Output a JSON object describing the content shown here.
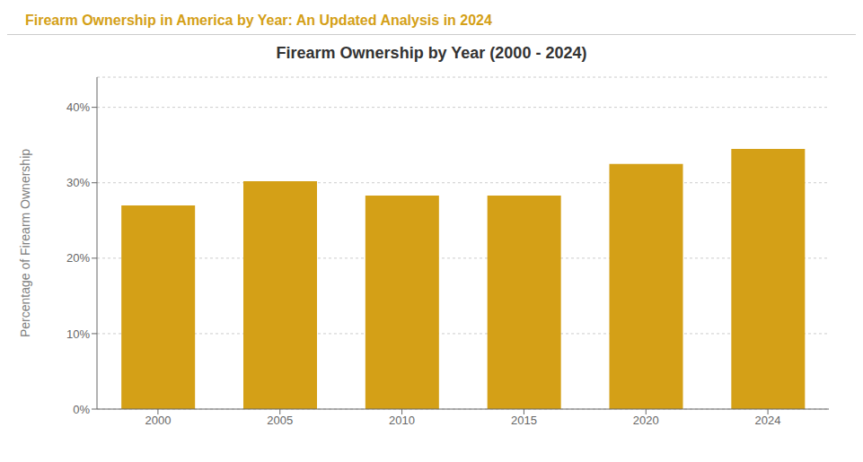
{
  "chart_data": {
    "type": "bar",
    "title": "Firearm Ownership by Year (2000 - 2024)",
    "subtitle": "Firearm Ownership in America by Year: An Updated Analysis in 2024",
    "ylabel": "Percentage of Firearm Ownership",
    "categories": [
      "2000",
      "2005",
      "2010",
      "2015",
      "2020",
      "2024"
    ],
    "values": [
      27,
      30.2,
      28.3,
      28.3,
      32.5,
      34.5
    ],
    "color": "#D4A017",
    "ylim": [
      0,
      44
    ],
    "yticks": [
      {
        "value": 0,
        "label": "0%"
      },
      {
        "value": 10,
        "label": "10%"
      },
      {
        "value": 20,
        "label": "20%"
      },
      {
        "value": 30,
        "label": "30%"
      },
      {
        "value": 40,
        "label": "40%"
      }
    ],
    "grid": true
  }
}
